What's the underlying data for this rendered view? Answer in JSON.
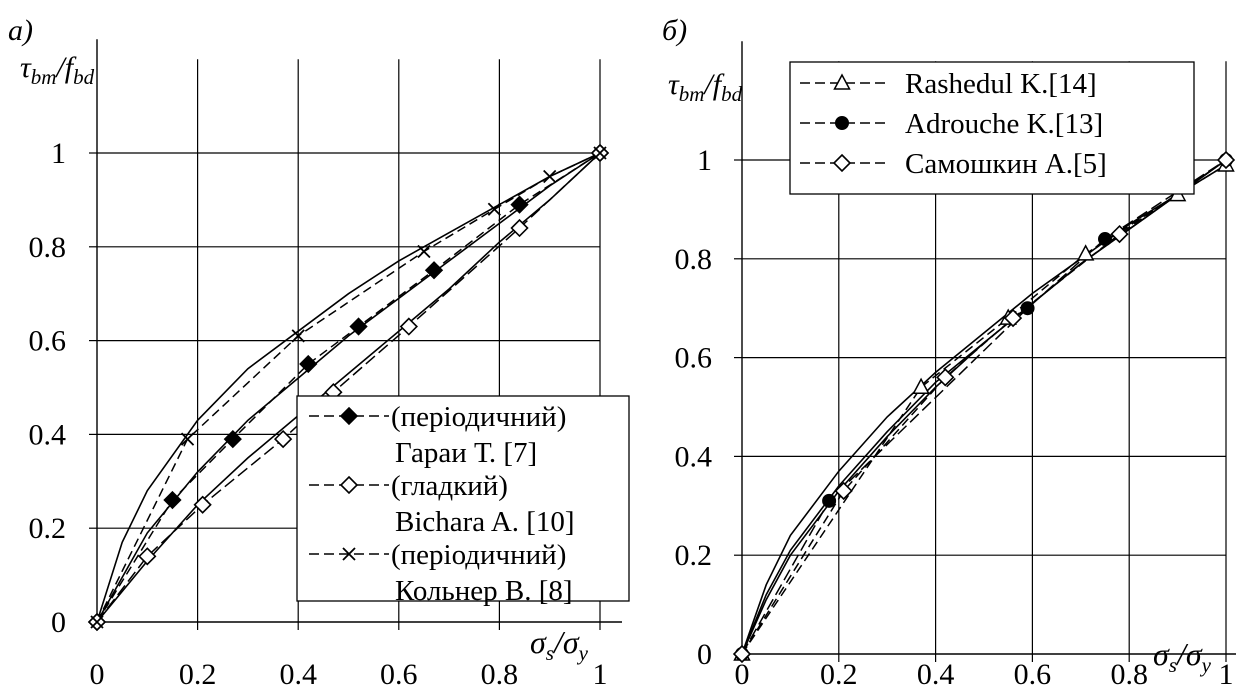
{
  "chart_data": [
    {
      "id": "a",
      "type": "line",
      "panel_label": "а)",
      "ylabel": {
        "main": "τ",
        "main_sub": "bm",
        "slash": "/",
        "den": "f",
        "den_sub": "bd"
      },
      "xlabel": {
        "num": "σ",
        "num_sub": "s",
        "slash": "/",
        "den": "σ",
        "den_sub": "y"
      },
      "xlim": [
        0,
        1
      ],
      "ylim": [
        0,
        1.2
      ],
      "x_ticks": [
        "0",
        "0.2",
        "0.4",
        "0.6",
        "0.8",
        "1"
      ],
      "y_ticks": [
        "0",
        "0.2",
        "0.4",
        "0.6",
        "0.8",
        "1"
      ],
      "grid": true,
      "legend_position": "lower-right",
      "legend": [
        {
          "marker": "filled-diamond",
          "lines": [
            "(періодичний)",
            "Гараи Т. [7]"
          ]
        },
        {
          "marker": "open-diamond",
          "lines": [
            "(гладкий)",
            "Bichara A. [10]"
          ]
        },
        {
          "marker": "cross",
          "lines": [
            "(періодичний)",
            "Кольнер В. [8]"
          ]
        }
      ],
      "series": [
        {
          "marker": "filled-diamond",
          "x": [
            0,
            0.15,
            0.27,
            0.42,
            0.52,
            0.67,
            0.84,
            1
          ],
          "y": [
            0,
            0.26,
            0.39,
            0.55,
            0.63,
            0.75,
            0.89,
            1
          ],
          "fit": {
            "x": [
              0,
              0.1,
              0.2,
              0.3,
              0.4,
              0.5,
              0.6,
              0.7,
              0.8,
              0.9,
              1
            ],
            "y": [
              0,
              0.19,
              0.32,
              0.43,
              0.52,
              0.61,
              0.69,
              0.77,
              0.85,
              0.93,
              1
            ]
          }
        },
        {
          "marker": "open-diamond",
          "x": [
            0,
            0.1,
            0.21,
            0.37,
            0.47,
            0.62,
            0.84,
            1
          ],
          "y": [
            0,
            0.14,
            0.25,
            0.39,
            0.49,
            0.63,
            0.84,
            1
          ],
          "fit": {
            "x": [
              0,
              0.1,
              0.2,
              0.3,
              0.4,
              0.5,
              0.6,
              0.7,
              0.8,
              0.9,
              1
            ],
            "y": [
              0,
              0.13,
              0.25,
              0.35,
              0.44,
              0.53,
              0.62,
              0.71,
              0.81,
              0.9,
              1
            ]
          }
        },
        {
          "marker": "cross",
          "x": [
            0,
            0.18,
            0.4,
            0.65,
            0.79,
            0.9,
            1
          ],
          "y": [
            0,
            0.39,
            0.61,
            0.79,
            0.88,
            0.95,
            1
          ],
          "fit": {
            "x": [
              0,
              0.05,
              0.1,
              0.2,
              0.3,
              0.4,
              0.5,
              0.6,
              0.7,
              0.8,
              0.9,
              1
            ],
            "y": [
              0,
              0.17,
              0.28,
              0.43,
              0.54,
              0.62,
              0.7,
              0.77,
              0.83,
              0.89,
              0.95,
              1
            ]
          }
        }
      ]
    },
    {
      "id": "b",
      "type": "line",
      "panel_label": "б)",
      "ylabel": {
        "main": "τ",
        "main_sub": "bm",
        "slash": "/",
        "den": "f",
        "den_sub": "bd"
      },
      "xlabel": {
        "num": "σ",
        "num_sub": "s",
        "slash": "/",
        "den": "σ",
        "den_sub": "y"
      },
      "xlim": [
        0,
        1
      ],
      "ylim": [
        0,
        1.2
      ],
      "x_ticks": [
        "0",
        "0.2",
        "0.4",
        "0.6",
        "0.8",
        "1"
      ],
      "y_ticks": [
        "0",
        "0.2",
        "0.4",
        "0.6",
        "0.8",
        "1"
      ],
      "grid": true,
      "legend_position": "top",
      "legend": [
        {
          "marker": "open-triangle",
          "lines": [
            "Rashedul K.[14]"
          ]
        },
        {
          "marker": "filled-circle",
          "lines": [
            "Adrouche K.[13]"
          ]
        },
        {
          "marker": "open-diamond",
          "lines": [
            "Самошкин А.[5]"
          ]
        }
      ],
      "series": [
        {
          "marker": "open-triangle",
          "x": [
            0,
            0.37,
            0.55,
            0.71,
            0.9,
            1
          ],
          "y": [
            0,
            0.54,
            0.68,
            0.81,
            0.93,
            0.99
          ],
          "fit": {
            "x": [
              0,
              0.05,
              0.1,
              0.2,
              0.3,
              0.4,
              0.5,
              0.6,
              0.7,
              0.8,
              0.9,
              1
            ],
            "y": [
              0,
              0.14,
              0.24,
              0.37,
              0.48,
              0.57,
              0.65,
              0.73,
              0.8,
              0.87,
              0.93,
              0.99
            ]
          }
        },
        {
          "marker": "filled-circle",
          "x": [
            0,
            0.18,
            0.59,
            0.75,
            1
          ],
          "y": [
            0,
            0.31,
            0.7,
            0.84,
            1
          ],
          "fit": {
            "x": [
              0,
              0.05,
              0.1,
              0.2,
              0.3,
              0.4,
              0.5,
              0.6,
              0.7,
              0.8,
              0.9,
              1
            ],
            "y": [
              0,
              0.12,
              0.21,
              0.34,
              0.45,
              0.55,
              0.63,
              0.71,
              0.79,
              0.86,
              0.93,
              1
            ]
          }
        },
        {
          "marker": "open-diamond",
          "x": [
            0,
            0.21,
            0.42,
            0.56,
            0.78,
            1
          ],
          "y": [
            0,
            0.33,
            0.56,
            0.68,
            0.85,
            1
          ],
          "fit": {
            "x": [
              0,
              0.05,
              0.1,
              0.2,
              0.3,
              0.4,
              0.5,
              0.6,
              0.7,
              0.8,
              0.9,
              1
            ],
            "y": [
              0,
              0.11,
              0.2,
              0.33,
              0.44,
              0.54,
              0.63,
              0.71,
              0.79,
              0.86,
              0.93,
              1
            ]
          }
        }
      ]
    }
  ]
}
